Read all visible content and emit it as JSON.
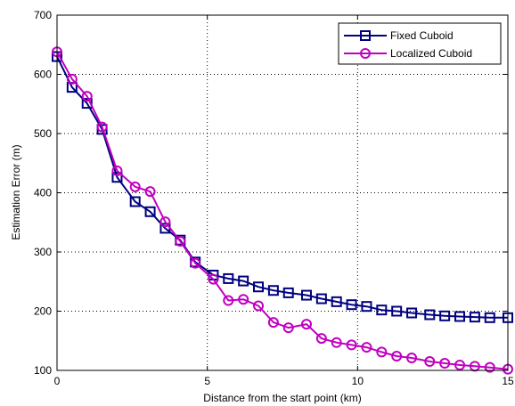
{
  "chart_data": {
    "type": "line",
    "title": "",
    "xlabel": "Distance from the start point (km)",
    "ylabel": "Estimation Error (m)",
    "xlim": [
      0,
      15
    ],
    "ylim": [
      100,
      700
    ],
    "xticks": [
      0,
      5,
      10,
      15
    ],
    "yticks": [
      100,
      200,
      300,
      400,
      500,
      600,
      700
    ],
    "grid": true,
    "grid_style": "dotted",
    "legend_position": "top-right",
    "series": [
      {
        "name": "Fixed Cuboid",
        "color": "#000080",
        "marker": "square",
        "x": [
          0,
          0.5,
          1.0,
          1.5,
          2.0,
          2.6,
          3.1,
          3.6,
          4.1,
          4.6,
          5.2,
          5.7,
          6.2,
          6.7,
          7.2,
          7.7,
          8.3,
          8.8,
          9.3,
          9.8,
          10.3,
          10.8,
          11.3,
          11.8,
          12.4,
          12.9,
          13.4,
          13.9,
          14.4,
          15.0
        ],
        "y": [
          630,
          578,
          551,
          507,
          426,
          385,
          368,
          340,
          320,
          283,
          261,
          255,
          251,
          241,
          235,
          231,
          227,
          221,
          216,
          211,
          208,
          202,
          200,
          197,
          194,
          192,
          191,
          190,
          189,
          189
        ]
      },
      {
        "name": "Localized Cuboid",
        "color": "#c000c0",
        "marker": "circle",
        "x": [
          0,
          0.5,
          1.0,
          1.5,
          2.0,
          2.6,
          3.1,
          3.6,
          4.1,
          4.6,
          5.2,
          5.7,
          6.2,
          6.7,
          7.2,
          7.7,
          8.3,
          8.8,
          9.3,
          9.8,
          10.3,
          10.8,
          11.3,
          11.8,
          12.4,
          12.9,
          13.4,
          13.9,
          14.4,
          15.0
        ],
        "y": [
          638,
          592,
          563,
          511,
          437,
          410,
          402,
          351,
          318,
          281,
          254,
          218,
          220,
          209,
          181,
          172,
          178,
          154,
          147,
          143,
          139,
          131,
          124,
          121,
          115,
          112,
          109,
          107,
          105,
          102
        ]
      }
    ]
  }
}
